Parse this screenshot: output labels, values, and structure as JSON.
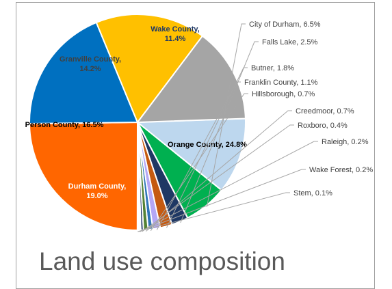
{
  "caption": "Land use composition",
  "chart_data": {
    "type": "pie",
    "title": "",
    "slices": [
      {
        "label": "Wake County",
        "value": 11.4,
        "color": "#bdd7ee"
      },
      {
        "label": "City of Durham",
        "value": 6.5,
        "color": "#00b050"
      },
      {
        "label": "Falls Lake",
        "value": 2.5,
        "color": "#1f3864"
      },
      {
        "label": "Butner",
        "value": 1.8,
        "color": "#c55a11"
      },
      {
        "label": "Franklin County",
        "value": 1.1,
        "color": "#b4a7f5"
      },
      {
        "label": "Hillsborough",
        "value": 0.7,
        "color": "#2e75b6"
      },
      {
        "label": "Creedmoor",
        "value": 0.7,
        "color": "#548235"
      },
      {
        "label": "Roxboro",
        "value": 0.4,
        "color": "#203864"
      },
      {
        "label": "Raleigh",
        "value": 0.2,
        "color": "#9dc3e6"
      },
      {
        "label": "Wake Forest",
        "value": 0.2,
        "color": "#a9d18e"
      },
      {
        "label": "Stem",
        "value": 0.1,
        "color": "#d9d9d9"
      },
      {
        "label": "Orange County",
        "value": 24.8,
        "color": "#ff6600"
      },
      {
        "label": "Durham County",
        "value": 19.0,
        "color": "#0070c0"
      },
      {
        "label": "Person County",
        "value": 16.5,
        "color": "#ffc000"
      },
      {
        "label": "Granville County",
        "value": 14.2,
        "color": "#a5a5a5"
      }
    ],
    "inside_labels": {
      "Wake County": [
        "Wake County,",
        "11.4%"
      ],
      "Orange County": [
        "Orange County, 24.8%"
      ],
      "Durham County": [
        "Durham County,",
        "19.0%"
      ],
      "Person County": [
        "Person County, 16.5%"
      ],
      "Granville County": [
        "Granville County,",
        "14.2%"
      ]
    },
    "outside_labels": {
      "City of Durham": "City of Durham, 6.5%",
      "Falls Lake": "Falls Lake, 2.5%",
      "Butner": "Butner, 1.8%",
      "Franklin County": "Franklin County, 1.1%",
      "Hillsborough": "Hillsborough, 0.7%",
      "Creedmoor": "Creedmoor, 0.7%",
      "Roxboro": "Roxboro, 0.4%",
      "Raleigh": "Raleigh, 0.2%",
      "Wake Forest": "Wake Forest, 0.2%",
      "Stem": "Stem, 0.1%"
    }
  }
}
